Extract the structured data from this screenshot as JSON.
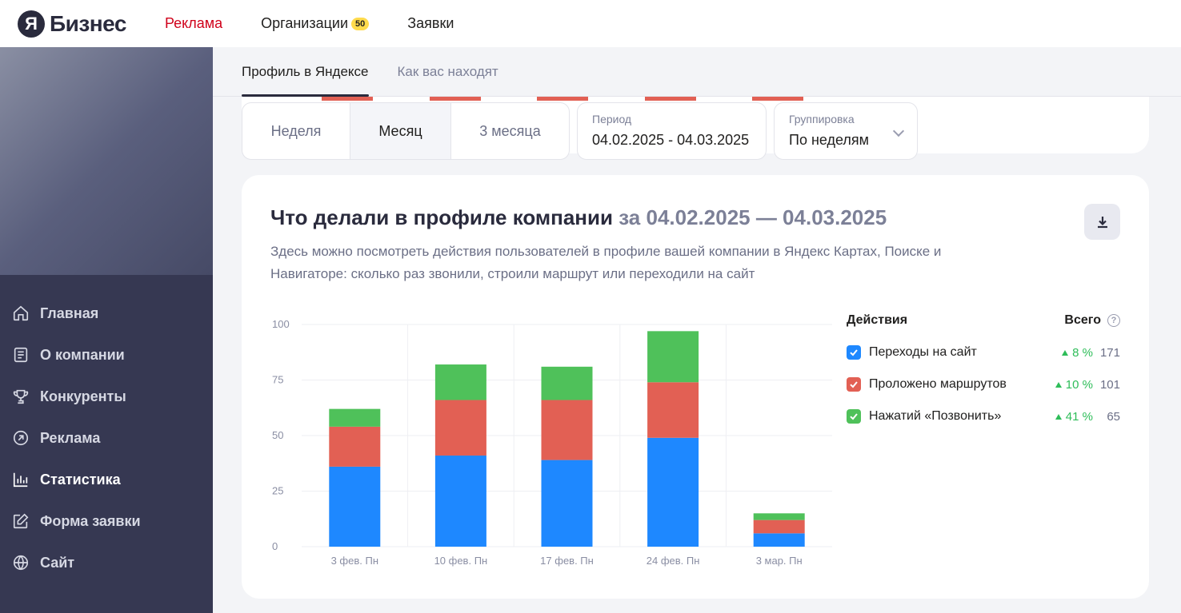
{
  "header": {
    "logo_letter": "Я",
    "logo_text": "Бизнес",
    "nav": [
      {
        "label": "Реклама",
        "active": true
      },
      {
        "label": "Организации",
        "badge": "50"
      },
      {
        "label": "Заявки"
      }
    ]
  },
  "sidebar": {
    "items": [
      {
        "label": "Главная",
        "icon": "home-icon"
      },
      {
        "label": "О компании",
        "icon": "document-icon"
      },
      {
        "label": "Конкуренты",
        "icon": "trophy-icon"
      },
      {
        "label": "Реклама",
        "icon": "arrow-circle-icon"
      },
      {
        "label": "Статистика",
        "icon": "bar-chart-icon",
        "active": true
      },
      {
        "label": "Форма заявки",
        "icon": "edit-icon"
      },
      {
        "label": "Сайт",
        "icon": "globe-icon"
      }
    ]
  },
  "tabs": [
    {
      "label": "Профиль в Яндексе",
      "active": true
    },
    {
      "label": "Как вас находят"
    }
  ],
  "filters": {
    "periods": [
      "Неделя",
      "Месяц",
      "3 месяца"
    ],
    "active_period": "Месяц",
    "period_label": "Период",
    "period_value": "04.02.2025 - 04.03.2025",
    "grouping_label": "Группировка",
    "grouping_value": "По неделям"
  },
  "card": {
    "title": "Что делали в профиле компании",
    "title_range": "за 04.02.2025 — 04.03.2025",
    "description": "Здесь можно посмотреть действия пользователей в профиле вашей компании в Яндекс Картах, Поиске и Навигаторе: сколько раз звонили, строили маршрут или переходили на сайт"
  },
  "legend": {
    "col_actions": "Действия",
    "col_total": "Всего",
    "help": "?"
  },
  "colors": {
    "site": "#1e88ff",
    "route": "#e26054",
    "call": "#4fc15a",
    "growth": "#2ebd59"
  },
  "chart_data": {
    "type": "bar",
    "stacked": true,
    "categories": [
      "3 фев. Пн",
      "10 фев. Пн",
      "17 фев. Пн",
      "24 фев. Пн",
      "3 мар. Пн"
    ],
    "ylim": [
      0,
      100
    ],
    "yticks": [
      0,
      25,
      50,
      75,
      100
    ],
    "grid": true,
    "series": [
      {
        "name": "Переходы на сайт",
        "color": "#1e88ff",
        "values": [
          36,
          41,
          39,
          49,
          6
        ],
        "growth": "8 %",
        "total": "171"
      },
      {
        "name": "Проложено маршрутов",
        "color": "#e26054",
        "values": [
          18,
          25,
          27,
          25,
          6
        ],
        "growth": "10 %",
        "total": "101"
      },
      {
        "name": "Нажатий «Позвонить»",
        "color": "#4fc15a",
        "values": [
          8,
          16,
          15,
          23,
          3
        ],
        "growth": "41 %",
        "total": "65"
      }
    ]
  }
}
